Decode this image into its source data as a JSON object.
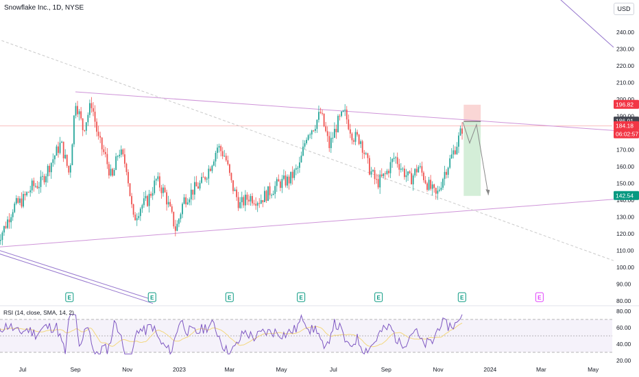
{
  "header": {
    "title": "Snowflake Inc., 1D, NYSE",
    "currency": "USD"
  },
  "rsi": {
    "label": "RSI (14, close, SMA, 14, 2)",
    "ticks": [
      "80.00",
      "60.00",
      "40.00",
      "20.00"
    ]
  },
  "colors": {
    "up": "#26a69a",
    "down": "#ef5350",
    "trendline": "#ce93d8",
    "rsi_line": "#7e57c2",
    "rsi_sma": "#f3d77e",
    "stop_zone": "#f9cfce",
    "target_zone": "#cdebd1"
  },
  "chart_data": {
    "type": "candlestick",
    "symbol": "Snowflake Inc.",
    "interval": "1D",
    "exchange": "NYSE",
    "y_ticks": [
      "240.00",
      "230.00",
      "220.00",
      "210.00",
      "200.00",
      "190.00",
      "180.00",
      "170.00",
      "160.00",
      "150.00",
      "140.00",
      "130.00",
      "120.00",
      "110.00",
      "100.00",
      "90.00",
      "80.00"
    ],
    "x_ticks": [
      "Jul",
      "Sep",
      "Nov",
      "2023",
      "Mar",
      "May",
      "Jul",
      "Sep",
      "Nov",
      "2024",
      "Mar",
      "May"
    ],
    "price_labels": [
      {
        "value": "196.82",
        "color": "#f23645"
      },
      {
        "value": "186.91",
        "color": "#434651"
      },
      {
        "value": "184.18",
        "color": "#f23645"
      },
      {
        "value": "06:02:57",
        "color": "#f23645"
      },
      {
        "value": "142.54",
        "color": "#089981"
      }
    ],
    "earnings_markers": [
      "E",
      "E",
      "E",
      "E",
      "E",
      "E",
      "E"
    ],
    "last_close": 184.18,
    "position": {
      "direction": "short",
      "stop": 196.82,
      "entry": 186.91,
      "target": 142.54
    },
    "rsi_levels": [
      70,
      50,
      30
    ],
    "price_path": [
      {
        "date": "2022-06-01",
        "price": 116
      },
      {
        "date": "2022-06-10",
        "price": 124
      },
      {
        "date": "2022-06-20",
        "price": 136
      },
      {
        "date": "2022-07-01",
        "price": 140
      },
      {
        "date": "2022-07-12",
        "price": 148
      },
      {
        "date": "2022-07-22",
        "price": 150
      },
      {
        "date": "2022-08-03",
        "price": 162
      },
      {
        "date": "2022-08-15",
        "price": 174
      },
      {
        "date": "2022-08-25",
        "price": 155
      },
      {
        "date": "2022-09-01",
        "price": 200
      },
      {
        "date": "2022-09-10",
        "price": 182
      },
      {
        "date": "2022-09-20",
        "price": 198
      },
      {
        "date": "2022-09-28",
        "price": 176
      },
      {
        "date": "2022-10-06",
        "price": 166
      },
      {
        "date": "2022-10-14",
        "price": 152
      },
      {
        "date": "2022-10-22",
        "price": 170
      },
      {
        "date": "2022-10-31",
        "price": 160
      },
      {
        "date": "2022-11-08",
        "price": 128
      },
      {
        "date": "2022-11-16",
        "price": 136
      },
      {
        "date": "2022-11-25",
        "price": 140
      },
      {
        "date": "2022-12-05",
        "price": 152
      },
      {
        "date": "2022-12-15",
        "price": 144
      },
      {
        "date": "2022-12-28",
        "price": 122
      },
      {
        "date": "2023-01-06",
        "price": 140
      },
      {
        "date": "2023-01-17",
        "price": 146
      },
      {
        "date": "2023-01-27",
        "price": 150
      },
      {
        "date": "2023-02-06",
        "price": 160
      },
      {
        "date": "2023-02-15",
        "price": 172
      },
      {
        "date": "2023-02-24",
        "price": 166
      },
      {
        "date": "2023-03-03",
        "price": 150
      },
      {
        "date": "2023-03-13",
        "price": 137
      },
      {
        "date": "2023-03-24",
        "price": 142
      },
      {
        "date": "2023-04-05",
        "price": 140
      },
      {
        "date": "2023-04-17",
        "price": 145
      },
      {
        "date": "2023-04-28",
        "price": 150
      },
      {
        "date": "2023-05-10",
        "price": 152
      },
      {
        "date": "2023-05-22",
        "price": 160
      },
      {
        "date": "2023-05-31",
        "price": 180
      },
      {
        "date": "2023-06-08",
        "price": 184
      },
      {
        "date": "2023-06-16",
        "price": 192
      },
      {
        "date": "2023-06-26",
        "price": 172
      },
      {
        "date": "2023-07-06",
        "price": 186
      },
      {
        "date": "2023-07-14",
        "price": 192
      },
      {
        "date": "2023-07-24",
        "price": 178
      },
      {
        "date": "2023-08-02",
        "price": 176
      },
      {
        "date": "2023-08-11",
        "price": 160
      },
      {
        "date": "2023-08-21",
        "price": 150
      },
      {
        "date": "2023-08-31",
        "price": 155
      },
      {
        "date": "2023-09-11",
        "price": 166
      },
      {
        "date": "2023-09-20",
        "price": 158
      },
      {
        "date": "2023-09-29",
        "price": 152
      },
      {
        "date": "2023-10-09",
        "price": 160
      },
      {
        "date": "2023-10-19",
        "price": 150
      },
      {
        "date": "2023-10-30",
        "price": 142
      },
      {
        "date": "2023-11-08",
        "price": 156
      },
      {
        "date": "2023-11-16",
        "price": 165
      },
      {
        "date": "2023-11-24",
        "price": 175
      },
      {
        "date": "2023-11-30",
        "price": 184
      }
    ]
  }
}
